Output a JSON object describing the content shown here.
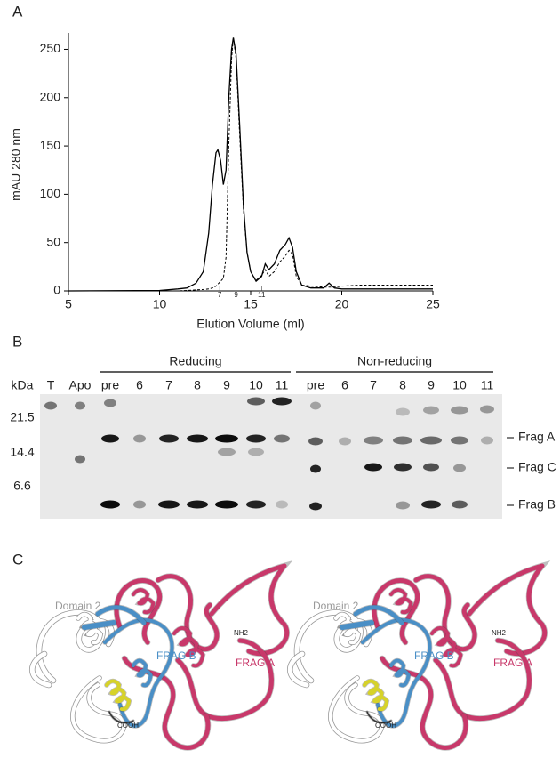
{
  "panel_labels": [
    "A",
    "B",
    "C"
  ],
  "chart_data": {
    "type": "line",
    "x_label": "Elution Volume (ml)",
    "y_label": "mAU 280 nm",
    "x": [
      5,
      10,
      11,
      11.5,
      12,
      12.4,
      12.7,
      12.9,
      13.1,
      13.2,
      13.35,
      13.5,
      13.65,
      13.8,
      13.95,
      14.05,
      14.2,
      14.4,
      14.6,
      14.8,
      15,
      15.3,
      15.6,
      15.8,
      16,
      16.3,
      16.6,
      16.9,
      17.1,
      17.3,
      17.5,
      17.8,
      18.3,
      19,
      19.3,
      19.6,
      20,
      21,
      22,
      25
    ],
    "series": [
      {
        "style": "solid",
        "color": "#000000",
        "values": [
          0,
          0.5,
          2,
          3,
          8,
          20,
          60,
          110,
          143,
          146,
          135,
          110,
          125,
          200,
          250,
          262,
          245,
          170,
          90,
          40,
          20,
          10,
          15,
          28,
          22,
          28,
          42,
          48,
          55,
          45,
          20,
          6,
          3,
          3,
          8,
          3,
          2,
          2,
          2,
          2
        ]
      },
      {
        "style": "dashed",
        "color": "#000000",
        "values": [
          0,
          0,
          0,
          0.5,
          1,
          1.5,
          2,
          3,
          5,
          7,
          10,
          13,
          35,
          150,
          240,
          262,
          240,
          160,
          85,
          40,
          20,
          11,
          16,
          22,
          15,
          20,
          30,
          36,
          42,
          38,
          15,
          6,
          5,
          4,
          4,
          4,
          5,
          6,
          6,
          6
        ]
      }
    ],
    "xlim": [
      5,
      25
    ],
    "xticks": [
      5,
      10,
      15,
      20,
      25
    ],
    "ylim": [
      0,
      267
    ],
    "yticks": [
      0,
      50,
      100,
      150,
      200,
      250
    ],
    "fractions": {
      "x": [
        13.3,
        14.2,
        15.6
      ],
      "labels": [
        "7",
        "9",
        "11"
      ]
    }
  },
  "gel": {
    "unit": "kDa",
    "markers": [
      "21.5",
      "14.4",
      "6.6"
    ],
    "lanes_left": [
      "T",
      "Apo"
    ],
    "groups": [
      {
        "title": "Reducing",
        "lanes": [
          "pre",
          "6",
          "7",
          "8",
          "9",
          "10",
          "11"
        ]
      },
      {
        "title": "Non-reducing",
        "lanes": [
          "pre",
          "6",
          "7",
          "8",
          "9",
          "10",
          "11"
        ]
      }
    ],
    "bands": [
      "Frag A",
      "Frag C",
      "Frag B"
    ]
  },
  "structure": {
    "labels": {
      "domain": "Domain 2",
      "frag_a": "FRAG A",
      "frag_b": "FRAG B",
      "n_term": "NH2",
      "c_term": "COOH"
    }
  }
}
